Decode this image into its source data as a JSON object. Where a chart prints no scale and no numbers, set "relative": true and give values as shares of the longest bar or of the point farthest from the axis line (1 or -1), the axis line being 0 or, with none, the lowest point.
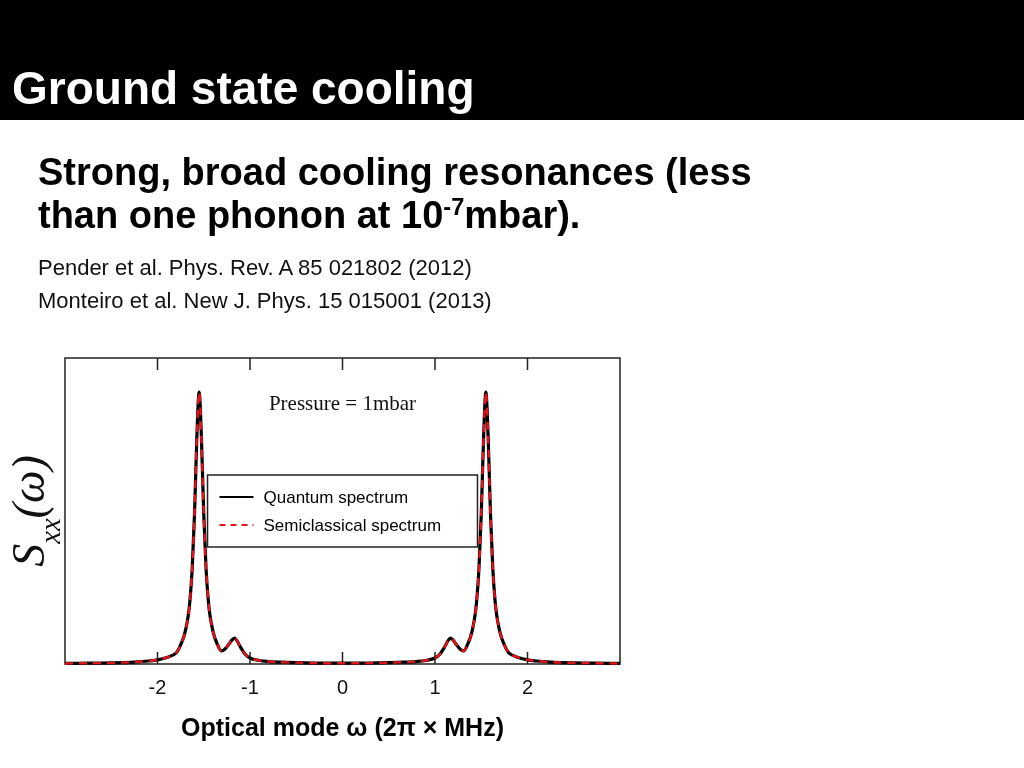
{
  "chart_data": {
    "type": "line",
    "title": "Ground state cooling",
    "subtitle": "Strong, broad cooling resonances (less than one phonon at 10$^{-7}$mbar).",
    "annotations": [
      "Pender et al. Phys. Rev. A 85 021802 (2012)",
      "Monteiro et al. New J. Phys. 15 015001 (2013)",
      "Pressure = 1mbar"
    ],
    "xlabel": "Optical mode ω (2π × MHz)",
    "ylabel": "S$_{xx}$(ω)",
    "x": [
      -3,
      -2.75,
      -2.5,
      -2.25,
      -2.1,
      -2.0,
      -1.9,
      -1.8,
      -1.75,
      -1.7,
      -1.65,
      -1.625,
      -1.6,
      -1.575,
      -1.55,
      -1.525,
      -1.5,
      -1.475,
      -1.45,
      -1.4,
      -1.35,
      -1.31,
      -1.27,
      -1.23,
      -1.19,
      -1.165,
      -1.14,
      -1.1,
      -1.05,
      -1.0,
      -0.9,
      -0.8,
      -0.6,
      -0.4,
      -0.2,
      0,
      0.2,
      0.4,
      0.6,
      0.8,
      0.9,
      1.0,
      1.05,
      1.1,
      1.14,
      1.165,
      1.19,
      1.23,
      1.27,
      1.31,
      1.35,
      1.4,
      1.45,
      1.475,
      1.5,
      1.525,
      1.55,
      1.575,
      1.6,
      1.625,
      1.65,
      1.7,
      1.75,
      1.8,
      1.9,
      2.0,
      2.1,
      2.25,
      2.5,
      2.75,
      3
    ],
    "series": [
      {
        "name": "Quantum spectrum",
        "color": "#000000",
        "line_style": "solid",
        "values": [
          0.002,
          0.003,
          0.004,
          0.007,
          0.011,
          0.015,
          0.024,
          0.04,
          0.07,
          0.12,
          0.23,
          0.35,
          0.55,
          0.83,
          1,
          0.83,
          0.55,
          0.35,
          0.23,
          0.12,
          0.07,
          0.048,
          0.055,
          0.072,
          0.09,
          0.095,
          0.085,
          0.06,
          0.035,
          0.022,
          0.013,
          0.009,
          0.006,
          0.004,
          0.003,
          0.003,
          0.003,
          0.004,
          0.006,
          0.009,
          0.013,
          0.022,
          0.035,
          0.06,
          0.085,
          0.095,
          0.09,
          0.072,
          0.055,
          0.048,
          0.07,
          0.12,
          0.23,
          0.35,
          0.55,
          0.83,
          1,
          0.83,
          0.55,
          0.35,
          0.23,
          0.12,
          0.07,
          0.04,
          0.024,
          0.015,
          0.011,
          0.007,
          0.004,
          0.003,
          0.002
        ]
      },
      {
        "name": "Semiclassical spectrum",
        "color": "#e4141c",
        "line_style": "dashed",
        "values": [
          0.002,
          0.003,
          0.004,
          0.007,
          0.011,
          0.015,
          0.024,
          0.04,
          0.07,
          0.12,
          0.23,
          0.35,
          0.55,
          0.83,
          1,
          0.83,
          0.55,
          0.35,
          0.23,
          0.12,
          0.07,
          0.048,
          0.055,
          0.072,
          0.09,
          0.095,
          0.085,
          0.06,
          0.035,
          0.022,
          0.013,
          0.009,
          0.006,
          0.004,
          0.003,
          0.003,
          0.003,
          0.004,
          0.006,
          0.009,
          0.013,
          0.022,
          0.035,
          0.06,
          0.085,
          0.095,
          0.09,
          0.072,
          0.055,
          0.048,
          0.07,
          0.12,
          0.23,
          0.35,
          0.55,
          0.83,
          1,
          0.83,
          0.55,
          0.35,
          0.23,
          0.12,
          0.07,
          0.04,
          0.024,
          0.015,
          0.011,
          0.007,
          0.004,
          0.003,
          0.002
        ]
      }
    ],
    "relative": true,
    "xlim": [
      -3,
      3
    ],
    "xticks": [
      -2,
      -1,
      0,
      1,
      2
    ],
    "tick_labels": "x",
    "legend": "center"
  }
}
